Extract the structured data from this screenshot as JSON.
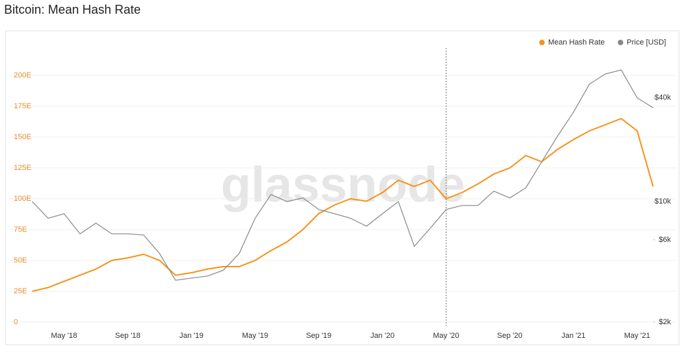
{
  "chart_data": {
    "type": "line",
    "title": "Bitcoin: Mean Hash Rate",
    "watermark": "glassnode",
    "categories": [
      null,
      null,
      "May '18",
      null,
      null,
      null,
      "Sep '18",
      null,
      null,
      null,
      "Jan '19",
      null,
      null,
      null,
      "May '19",
      null,
      null,
      null,
      "Sep '19",
      null,
      null,
      null,
      "Jan '20",
      null,
      null,
      null,
      "May '20",
      null,
      null,
      null,
      "Sep '20",
      null,
      null,
      null,
      "Jan '21",
      null,
      null,
      null,
      "May '21",
      null
    ],
    "series": [
      {
        "name": "Mean Hash Rate",
        "color": "#f7931a",
        "axis": "y",
        "values": [
          25,
          28,
          33,
          38,
          43,
          50,
          52,
          55,
          50,
          38,
          40,
          43,
          45,
          45,
          50,
          58,
          65,
          75,
          88,
          95,
          100,
          98,
          105,
          115,
          110,
          115,
          100,
          105,
          112,
          120,
          125,
          135,
          130,
          140,
          148,
          155,
          160,
          165,
          155,
          110
        ]
      },
      {
        "name": "Price [USD]",
        "color": "#888888",
        "axis": "y2",
        "values": [
          10000,
          8000,
          8500,
          6500,
          7500,
          6500,
          6500,
          6400,
          5000,
          3500,
          3600,
          3700,
          4000,
          5000,
          8000,
          11000,
          10000,
          10500,
          9000,
          8500,
          8000,
          7200,
          8500,
          10000,
          5500,
          7000,
          9000,
          9500,
          9500,
          11500,
          10500,
          12000,
          17000,
          24000,
          33000,
          48000,
          55000,
          58000,
          40000,
          35000
        ]
      }
    ],
    "ylim": [
      0,
      220
    ],
    "yticks": [
      0,
      {
        "value": 25,
        "label": "25E"
      },
      {
        "value": 50,
        "label": "50E"
      },
      {
        "value": 75,
        "label": "75E"
      },
      {
        "value": 100,
        "label": "100E"
      },
      {
        "value": 125,
        "label": "125E"
      },
      {
        "value": 150,
        "label": "150E"
      },
      {
        "value": 175,
        "label": "175E"
      },
      {
        "value": 200,
        "label": "200E"
      }
    ],
    "y2lim": [
      2000,
      75000
    ],
    "y2scale": "log",
    "y2ticks": [
      {
        "value": 2000,
        "label": "$2k"
      },
      {
        "value": 6000,
        "label": "$6k"
      },
      {
        "value": 10000,
        "label": "$10k"
      },
      {
        "value": 40000,
        "label": "$40k"
      }
    ],
    "grid": true,
    "legend": "top-right"
  }
}
